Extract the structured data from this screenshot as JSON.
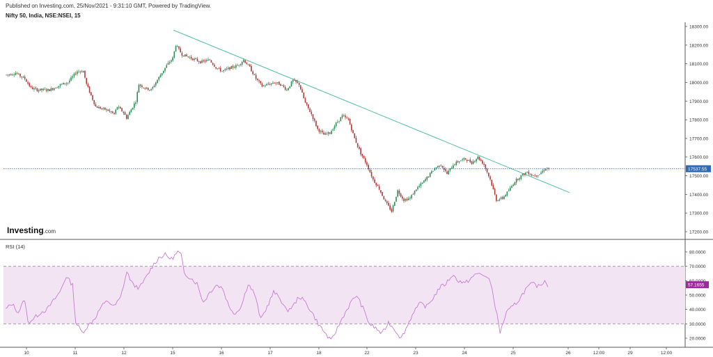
{
  "header": {
    "published": "Published on Investing.com, 25/Nov/2021 - 9:31:10 GMT, Powered by TradingView.",
    "symbol": "Nifty 50, India, NSE:NSEI, 15"
  },
  "logo": {
    "main": "Investing",
    "suffix": ".com"
  },
  "colors": {
    "up": "#2e8b57",
    "down": "#b03a3a",
    "trendline": "#4cc0a0",
    "price_line": "#3a6ea5",
    "rsi_line": "#c77ad6",
    "rsi_band": "#f2e4f3",
    "rsi_badge": "#9b2a9b",
    "price_badge": "#2f6bb5",
    "axis": "#555555"
  },
  "chart_data": [
    {
      "type": "candlestick",
      "title": "Nifty 50, India, NSE:NSEI, 15",
      "y_ticks": [
        17200,
        17300,
        17400,
        17500,
        17600,
        17700,
        17800,
        17900,
        18000,
        18100,
        18200,
        18300
      ],
      "y_tick_labels": [
        "17200.00",
        "17300.00",
        "17400.00",
        "17500.00",
        "17600.00",
        "17700.00",
        "17800.00",
        "17900.00",
        "18000.00",
        "18100.00",
        "18200.00",
        "18300.00"
      ],
      "ylim": [
        17160,
        18320
      ],
      "x_labels": [
        "10",
        "11",
        "12",
        "15",
        "16",
        "17",
        "18",
        "22",
        "23",
        "24",
        "25",
        "26",
        "12:00",
        "29",
        "12:00"
      ],
      "last_price": 17537.55,
      "last_price_label": "17537.55",
      "anchors": [
        [
          0,
          18040
        ],
        [
          6,
          18050
        ],
        [
          12,
          18020
        ],
        [
          16,
          17970
        ],
        [
          20,
          17960
        ],
        [
          28,
          17960
        ],
        [
          36,
          17990
        ],
        [
          40,
          18000
        ],
        [
          46,
          18060
        ],
        [
          50,
          18060
        ],
        [
          52,
          17990
        ],
        [
          54,
          17950
        ],
        [
          58,
          17870
        ],
        [
          62,
          17860
        ],
        [
          66,
          17850
        ],
        [
          70,
          17830
        ],
        [
          72,
          17870
        ],
        [
          76,
          17840
        ],
        [
          78,
          17810
        ],
        [
          82,
          17870
        ],
        [
          84,
          17900
        ],
        [
          86,
          17990
        ],
        [
          90,
          17970
        ],
        [
          94,
          17960
        ],
        [
          100,
          18040
        ],
        [
          104,
          18090
        ],
        [
          108,
          18130
        ],
        [
          110,
          18200
        ],
        [
          114,
          18150
        ],
        [
          120,
          18130
        ],
        [
          126,
          18110
        ],
        [
          132,
          18120
        ],
        [
          136,
          18080
        ],
        [
          140,
          18060
        ],
        [
          146,
          18080
        ],
        [
          150,
          18090
        ],
        [
          154,
          18120
        ],
        [
          158,
          18080
        ],
        [
          162,
          18020
        ],
        [
          166,
          17980
        ],
        [
          170,
          17990
        ],
        [
          174,
          18000
        ],
        [
          178,
          17990
        ],
        [
          182,
          17960
        ],
        [
          186,
          18010
        ],
        [
          190,
          17990
        ],
        [
          194,
          17890
        ],
        [
          198,
          17830
        ],
        [
          202,
          17750
        ],
        [
          206,
          17720
        ],
        [
          210,
          17730
        ],
        [
          214,
          17780
        ],
        [
          218,
          17820
        ],
        [
          222,
          17800
        ],
        [
          226,
          17700
        ],
        [
          230,
          17620
        ],
        [
          234,
          17560
        ],
        [
          238,
          17480
        ],
        [
          242,
          17430
        ],
        [
          246,
          17360
        ],
        [
          250,
          17310
        ],
        [
          254,
          17420
        ],
        [
          258,
          17370
        ],
        [
          262,
          17380
        ],
        [
          266,
          17430
        ],
        [
          270,
          17460
        ],
        [
          274,
          17500
        ],
        [
          278,
          17540
        ],
        [
          282,
          17560
        ],
        [
          286,
          17510
        ],
        [
          290,
          17560
        ],
        [
          294,
          17580
        ],
        [
          298,
          17590
        ],
        [
          302,
          17570
        ],
        [
          306,
          17600
        ],
        [
          310,
          17560
        ],
        [
          314,
          17480
        ],
        [
          318,
          17370
        ],
        [
          322,
          17380
        ],
        [
          326,
          17420
        ],
        [
          330,
          17470
        ],
        [
          334,
          17500
        ],
        [
          338,
          17520
        ],
        [
          342,
          17500
        ],
        [
          346,
          17510
        ],
        [
          350,
          17540
        ],
        [
          352,
          17538
        ]
      ],
      "trendline": {
        "start": [
          109,
          18280
        ],
        "end": [
          366,
          17410
        ]
      }
    },
    {
      "type": "line",
      "title": "RSI (14)",
      "y_ticks": [
        20,
        30,
        40,
        50,
        60,
        70,
        80
      ],
      "y_tick_labels": [
        "20.0000",
        "30.0000",
        "40.0000",
        "50.0000",
        "60.0000",
        "70.0000",
        "80.0000"
      ],
      "ylim": [
        15,
        85
      ],
      "band": [
        30,
        70
      ],
      "last_value": 57.1655,
      "last_value_label": "57.1655",
      "anchors": [
        [
          0,
          40
        ],
        [
          4,
          44
        ],
        [
          8,
          38
        ],
        [
          12,
          47
        ],
        [
          14,
          31
        ],
        [
          18,
          34
        ],
        [
          22,
          38
        ],
        [
          26,
          40
        ],
        [
          30,
          46
        ],
        [
          34,
          52
        ],
        [
          38,
          63
        ],
        [
          42,
          57
        ],
        [
          44,
          31
        ],
        [
          48,
          24
        ],
        [
          52,
          29
        ],
        [
          56,
          34
        ],
        [
          60,
          42
        ],
        [
          64,
          46
        ],
        [
          68,
          42
        ],
        [
          72,
          48
        ],
        [
          76,
          66
        ],
        [
          80,
          57
        ],
        [
          84,
          55
        ],
        [
          88,
          62
        ],
        [
          92,
          70
        ],
        [
          96,
          76
        ],
        [
          100,
          78
        ],
        [
          104,
          75
        ],
        [
          108,
          80
        ],
        [
          110,
          78
        ],
        [
          112,
          65
        ],
        [
          116,
          62
        ],
        [
          120,
          58
        ],
        [
          124,
          45
        ],
        [
          128,
          52
        ],
        [
          132,
          57
        ],
        [
          136,
          55
        ],
        [
          140,
          42
        ],
        [
          144,
          37
        ],
        [
          148,
          43
        ],
        [
          152,
          58
        ],
        [
          156,
          51
        ],
        [
          160,
          33
        ],
        [
          164,
          42
        ],
        [
          168,
          52
        ],
        [
          172,
          48
        ],
        [
          176,
          39
        ],
        [
          180,
          42
        ],
        [
          184,
          49
        ],
        [
          188,
          45
        ],
        [
          192,
          38
        ],
        [
          196,
          30
        ],
        [
          200,
          24
        ],
        [
          204,
          18
        ],
        [
          208,
          27
        ],
        [
          212,
          36
        ],
        [
          216,
          44
        ],
        [
          220,
          50
        ],
        [
          224,
          41
        ],
        [
          228,
          30
        ],
        [
          232,
          27
        ],
        [
          236,
          23
        ],
        [
          240,
          31
        ],
        [
          244,
          26
        ],
        [
          248,
          20
        ],
        [
          252,
          29
        ],
        [
          256,
          39
        ],
        [
          260,
          44
        ],
        [
          264,
          42
        ],
        [
          268,
          48
        ],
        [
          272,
          55
        ],
        [
          276,
          58
        ],
        [
          280,
          64
        ],
        [
          284,
          60
        ],
        [
          288,
          58
        ],
        [
          292,
          62
        ],
        [
          296,
          65
        ],
        [
          300,
          64
        ],
        [
          304,
          59
        ],
        [
          306,
          48
        ],
        [
          308,
          36
        ],
        [
          310,
          24
        ],
        [
          314,
          38
        ],
        [
          318,
          42
        ],
        [
          322,
          47
        ],
        [
          326,
          54
        ],
        [
          330,
          58
        ],
        [
          334,
          56
        ],
        [
          338,
          60
        ],
        [
          340,
          57
        ]
      ]
    }
  ]
}
